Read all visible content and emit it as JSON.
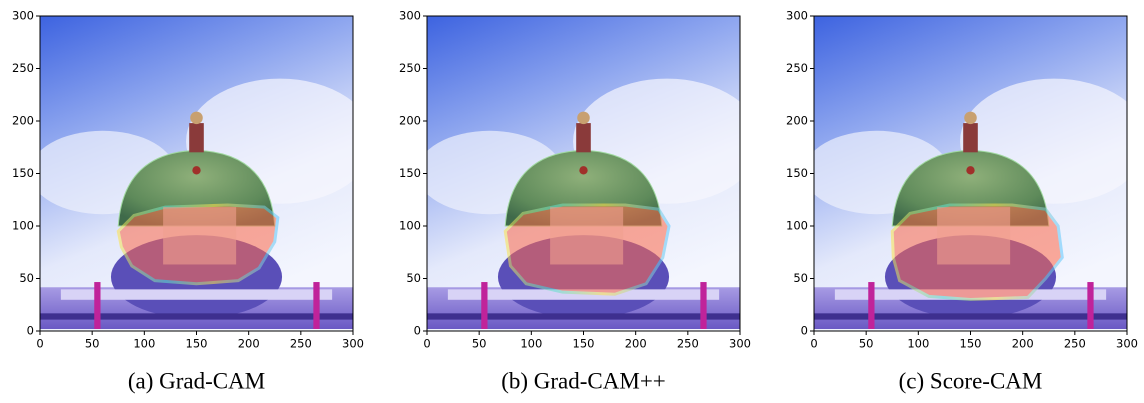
{
  "chart_data": [
    {
      "type": "image",
      "caption": "(a) Grad-CAM",
      "xlim": [
        0,
        300
      ],
      "ylim": [
        0,
        300
      ],
      "xticks": [
        0,
        50,
        100,
        150,
        200,
        250,
        300
      ],
      "yticks": [
        0,
        50,
        100,
        150,
        200,
        250,
        300
      ]
    },
    {
      "type": "image",
      "caption": "(b) Grad-CAM++",
      "xlim": [
        0,
        300
      ],
      "ylim": [
        0,
        300
      ],
      "xticks": [
        0,
        50,
        100,
        150,
        200,
        250,
        300
      ],
      "yticks": [
        0,
        50,
        100,
        150,
        200,
        250,
        300
      ]
    },
    {
      "type": "image",
      "caption": "(c) Score-CAM",
      "xlim": [
        0,
        300
      ],
      "ylim": [
        0,
        300
      ],
      "xticks": [
        0,
        50,
        100,
        150,
        200,
        250,
        300
      ],
      "yticks": [
        0,
        50,
        100,
        150,
        200,
        250,
        300
      ]
    }
  ]
}
